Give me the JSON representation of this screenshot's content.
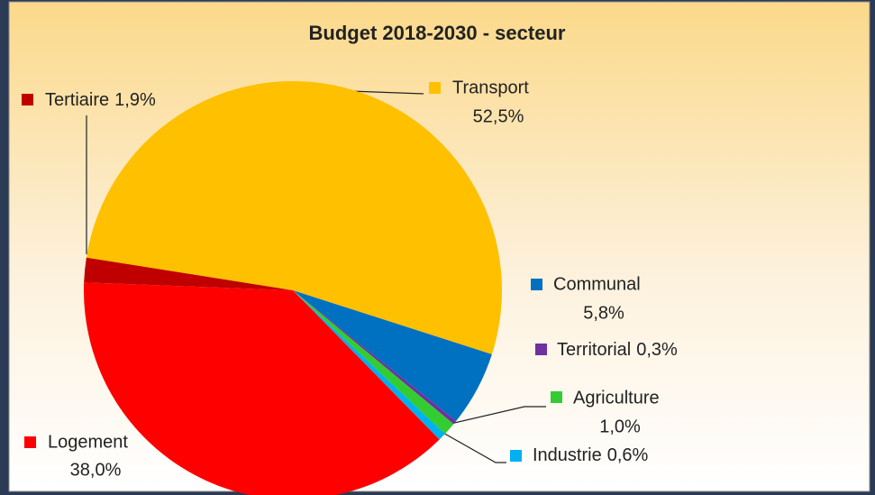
{
  "chart_data": {
    "type": "pie",
    "title": "Budget 2018-2030 - secteur",
    "categories": [
      "Transport",
      "Communal",
      "Territorial",
      "Agriculture",
      "Industrie",
      "Logement",
      "Tertiaire"
    ],
    "values": [
      52.5,
      5.8,
      0.3,
      1.0,
      0.6,
      38.0,
      1.9
    ],
    "value_labels": [
      "52,5%",
      "5,8%",
      "0,3%",
      "1,0%",
      "0,6%",
      "38,0%",
      "1,9%"
    ],
    "colors": [
      "#ffc000",
      "#0070c0",
      "#7030a0",
      "#33cc33",
      "#00b0f0",
      "#ff0000",
      "#c00000"
    ]
  }
}
